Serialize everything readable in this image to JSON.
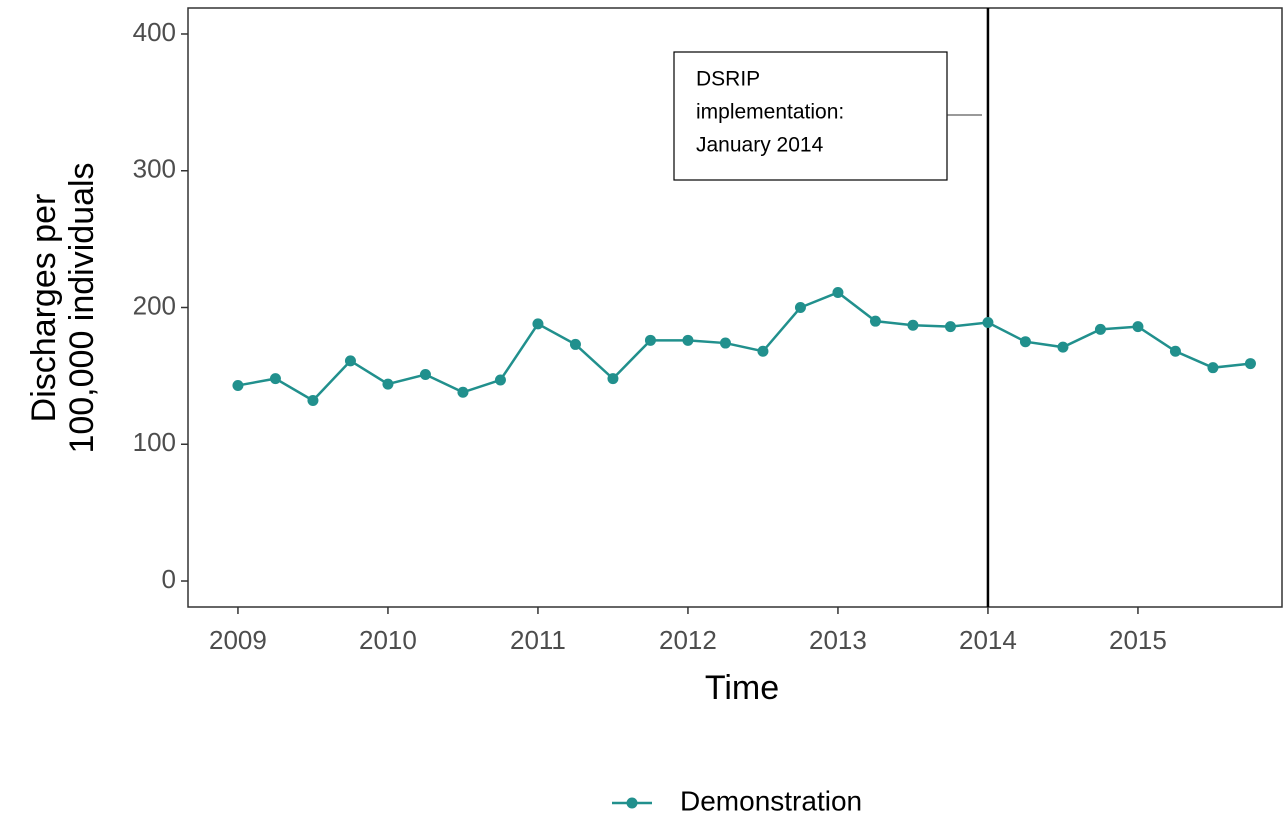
{
  "chart_data": {
    "type": "line",
    "ylabel": [
      "Discharges per",
      "100,000 individuals"
    ],
    "xlabel": "Time",
    "x": [
      2009,
      2009.25,
      2009.5,
      2009.75,
      2010,
      2010.25,
      2010.5,
      2010.75,
      2011,
      2011.25,
      2011.5,
      2011.75,
      2012,
      2012.25,
      2012.5,
      2012.75,
      2013,
      2013.25,
      2013.5,
      2013.75,
      2014,
      2014.25,
      2014.5,
      2014.75,
      2015,
      2015.25,
      2015.5,
      2015.75
    ],
    "series": [
      {
        "name": "Demonstration",
        "color": "#21908d",
        "values": [
          143,
          148,
          132,
          161,
          144,
          151,
          138,
          147,
          188,
          173,
          148,
          176,
          176,
          174,
          168,
          200,
          211,
          190,
          187,
          186,
          189,
          175,
          171,
          184,
          186,
          168,
          156,
          159
        ]
      }
    ],
    "xlim": [
      2008.667,
      2015.967
    ],
    "xticks": [
      2009,
      2010,
      2011,
      2012,
      2013,
      2014,
      2015
    ],
    "ylim": [
      -19,
      419
    ],
    "yticks": [
      0,
      100,
      200,
      300,
      400
    ],
    "vline": 2014,
    "annotation": [
      "DSRIP",
      "implementation:",
      "January 2014"
    ],
    "legend": "bottom",
    "grid": false
  }
}
